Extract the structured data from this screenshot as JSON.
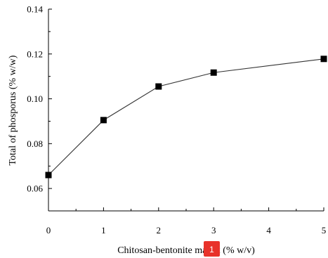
{
  "chart_data": {
    "type": "line",
    "xlabel": "Chitosan-bentonite matrix (% w/v)",
    "ylabel": "Total of phosporus (% w/w)",
    "xlim": [
      0,
      5
    ],
    "ylim": [
      0.05,
      0.14
    ],
    "x_ticks": [
      "0",
      "1",
      "2",
      "3",
      "4",
      "5"
    ],
    "y_ticks": [
      "0.06",
      "0.08",
      "0.10",
      "0.12",
      "0.14"
    ],
    "x_tick_values": [
      0,
      1,
      2,
      3,
      4,
      5
    ],
    "y_tick_values": [
      0.06,
      0.08,
      0.1,
      0.12,
      0.14
    ],
    "grid": false,
    "series": [
      {
        "x": [
          0,
          1,
          2,
          3,
          5
        ],
        "values": [
          0.066,
          0.0905,
          0.1055,
          0.1117,
          0.1178
        ],
        "marker": "square",
        "color": "#000000"
      }
    ]
  },
  "overlay_badge": {
    "text": "1",
    "color": "#e8322a"
  }
}
